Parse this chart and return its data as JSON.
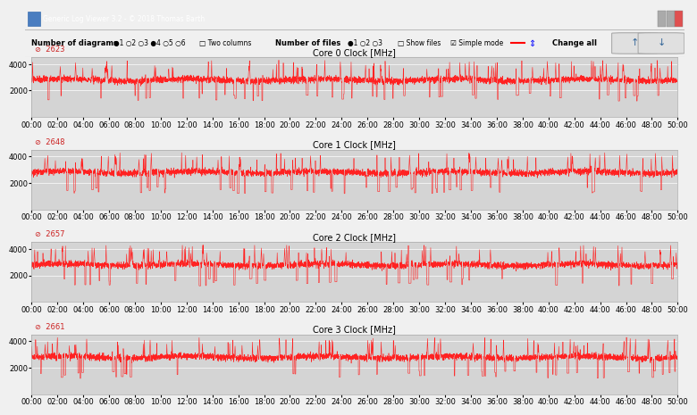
{
  "title": "Generic Log Viewer 3.2 - © 2018 Thomas Barth",
  "cores": [
    "Core 0 Clock [MHz]",
    "Core 1 Clock [MHz]",
    "Core 2 Clock [MHz]",
    "Core 3 Clock [MHz]"
  ],
  "avg_values": [
    "2623",
    "2648",
    "2657",
    "2661"
  ],
  "base_freq": 2800,
  "spike_freq": 4200,
  "low_freq": 1400,
  "ylim": [
    0,
    4500
  ],
  "yticks": [
    2000,
    4000
  ],
  "duration_seconds": 3060,
  "background_color": "#e8e8e8",
  "plot_bg_color": "#d4d4d4",
  "line_color": "#ff2222",
  "toolbar_color": "#f0f0f0",
  "window_color": "#f0f0f0",
  "title_bar_color": "#4a90d9",
  "text_color": "#333333",
  "grid_color": "#ffffff",
  "tick_label_size": 6,
  "axis_label_size": 8,
  "header_controls": "Number of diagrams ● 1 ○ 2 ○ 3 ● 4 ○ 5 ○ 6   □ Two columns     Number of files ● 1 ○ 2 ○ 3   □ Show files   ☑ Simple mode — ⇅     Change all"
}
